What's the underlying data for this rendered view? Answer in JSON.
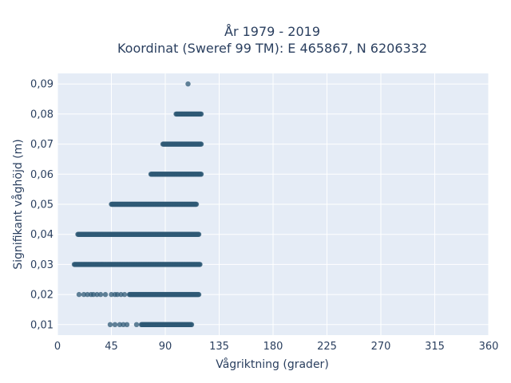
{
  "chart_data": {
    "type": "scatter",
    "title": "År 1979 - 2019",
    "subtitle": "Koordinat (Sweref 99 TM): E 465867, N 6206332",
    "xlabel": "Vågriktning (grader)",
    "ylabel": "Signifikant våghöjd (m)",
    "xlim": [
      0,
      360
    ],
    "ylim": [
      0.0065,
      0.0935
    ],
    "x_ticks": [
      0,
      45,
      90,
      135,
      180,
      225,
      270,
      315,
      360
    ],
    "y_ticks": [
      0.01,
      0.02,
      0.03,
      0.04,
      0.05,
      0.06,
      0.07,
      0.08,
      0.09
    ],
    "x_tick_labels": [
      "0",
      "45",
      "90",
      "135",
      "180",
      "225",
      "270",
      "315",
      "360"
    ],
    "y_tick_labels": [
      "0,01",
      "0,02",
      "0,03",
      "0,04",
      "0,05",
      "0,06",
      "0,07",
      "0,08",
      "0,09"
    ],
    "grid": true,
    "plot_background": "#e5ecf6",
    "marker_color": "#2f5a75",
    "point_bands": [
      {
        "y": 0.01,
        "x_start": 70,
        "x_end": 112,
        "sparse": [
          44,
          48,
          52,
          55,
          58,
          66
        ]
      },
      {
        "y": 0.02,
        "x_start": 60,
        "x_end": 118,
        "sparse": [
          18,
          22,
          25,
          28,
          30,
          33,
          36,
          40,
          45,
          48,
          50,
          53,
          56
        ]
      },
      {
        "y": 0.03,
        "x_start": 14,
        "x_end": 119,
        "sparse": []
      },
      {
        "y": 0.04,
        "x_start": 17,
        "x_end": 118,
        "sparse": []
      },
      {
        "y": 0.05,
        "x_start": 45,
        "x_end": 116,
        "sparse": []
      },
      {
        "y": 0.06,
        "x_start": 78,
        "x_end": 120,
        "sparse": []
      },
      {
        "y": 0.07,
        "x_start": 88,
        "x_end": 120,
        "sparse": []
      },
      {
        "y": 0.08,
        "x_start": 99,
        "x_end": 120,
        "sparse": []
      },
      {
        "y": 0.09,
        "x_start": 109,
        "x_end": 109,
        "sparse": []
      }
    ]
  }
}
